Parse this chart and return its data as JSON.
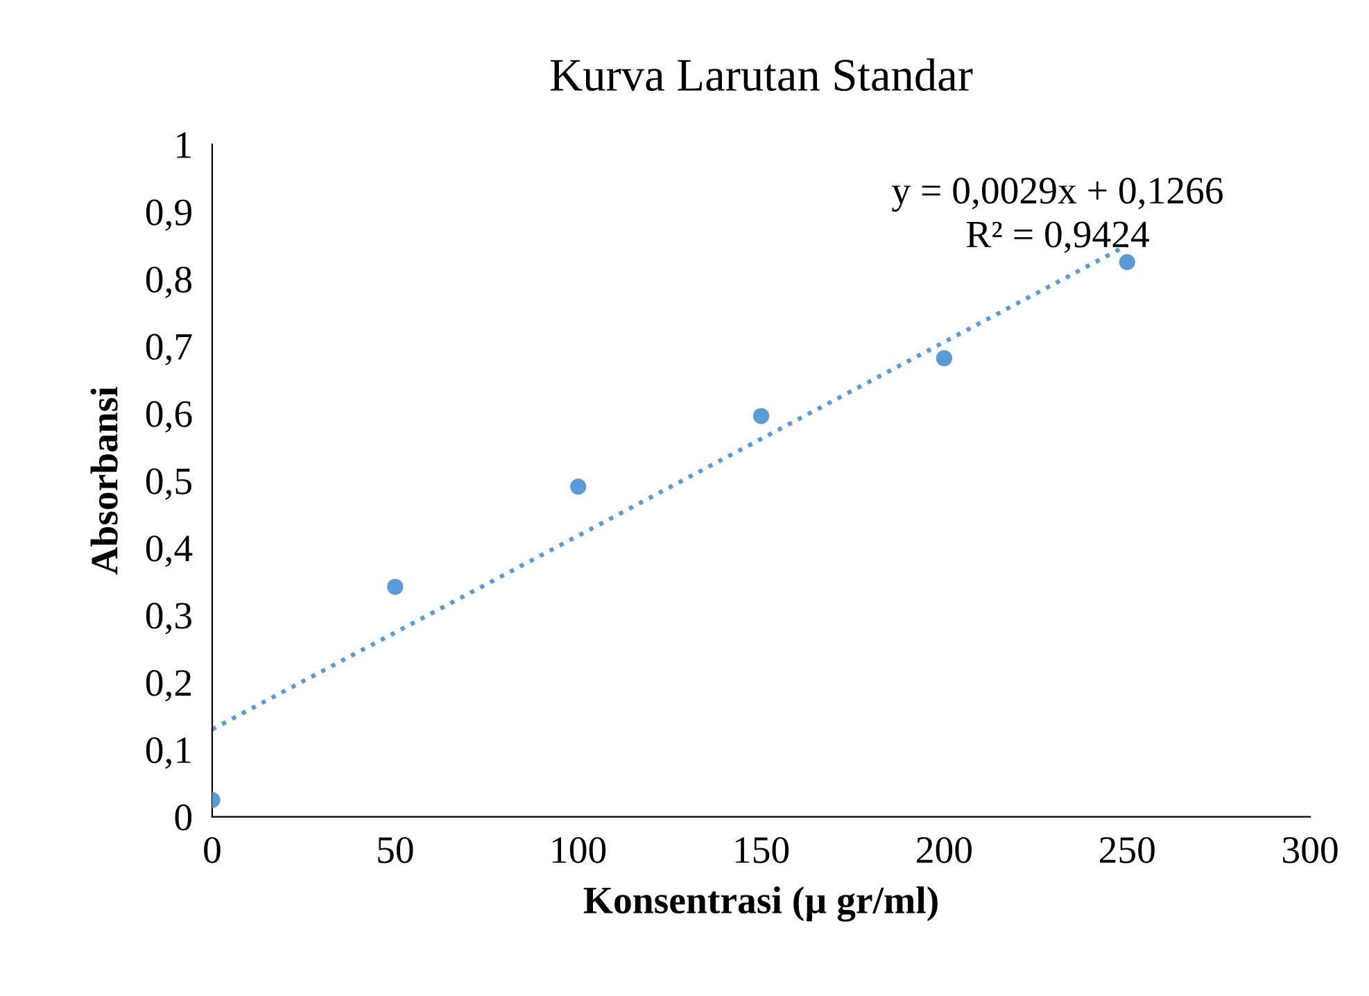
{
  "chart_data": {
    "type": "scatter",
    "title": "Kurva Larutan Standar",
    "xlabel": "Konsentrasi (µ gr/ml)",
    "ylabel": "Absorbansi",
    "x": [
      0,
      50,
      100,
      150,
      200,
      250
    ],
    "series": [
      {
        "color": "#5b9bd5",
        "marker": "circle",
        "values": [
          0.025,
          0.342,
          0.491,
          0.596,
          0.682,
          0.825
        ]
      },
      {
        "type": "line",
        "color": "#5b9bd5",
        "line_style": "dotted",
        "marker": "none",
        "x": [
          0,
          250
        ],
        "values": [
          0.13,
          0.85
        ]
      }
    ],
    "xlim": [
      0,
      300
    ],
    "xticks": [
      0,
      50,
      100,
      150,
      200,
      250,
      300
    ],
    "ylim": [
      0,
      1
    ],
    "yticks": [
      0,
      {
        "value": 0.1,
        "label": "0,1"
      },
      {
        "value": 0.2,
        "label": "0,2"
      },
      {
        "value": 0.3,
        "label": "0,3"
      },
      {
        "value": 0.4,
        "label": "0,4"
      },
      {
        "value": 0.5,
        "label": "0,5"
      },
      {
        "value": 0.6,
        "label": "0,6"
      },
      {
        "value": 0.7,
        "label": "0,7"
      },
      {
        "value": 0.8,
        "label": "0,8"
      },
      {
        "value": 0.9,
        "label": "0,9"
      },
      1
    ],
    "grid": false,
    "legend": false,
    "annotations": [
      "y = 0,0029x + 0,1266",
      "R² = 0,9424"
    ]
  }
}
